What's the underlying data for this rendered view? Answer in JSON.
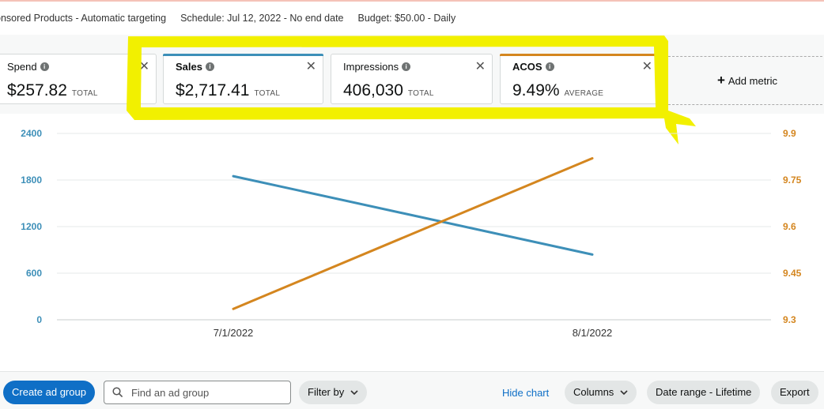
{
  "campaign": {
    "type_text": "onsored Products - Automatic targeting",
    "schedule_text": "Schedule: Jul 12, 2022 - No end date",
    "budget_text": "Budget: $50.00 - Daily"
  },
  "metrics": [
    {
      "label": "Spend",
      "value": "$257.82",
      "agg": "TOTAL"
    },
    {
      "label": "Sales",
      "value": "$2,717.41",
      "agg": "TOTAL",
      "color": "#3d8fb8"
    },
    {
      "label": "Impressions",
      "value": "406,030",
      "agg": "TOTAL"
    },
    {
      "label": "ACOS",
      "value": "9.49%",
      "agg": "AVERAGE",
      "color": "#d4861f"
    }
  ],
  "add_metric_label": "Add metric",
  "highlight_color": "#f2f000",
  "chart_data": {
    "type": "line",
    "x": [
      "7/1/2022",
      "8/1/2022"
    ],
    "y_left": {
      "ticks": [
        "2400",
        "1800",
        "1200",
        "600",
        "0"
      ],
      "range": [
        0,
        2400
      ]
    },
    "y_right": {
      "ticks": [
        "9.9",
        "9.75",
        "9.6",
        "9.45",
        "9.3"
      ],
      "range": [
        9.3,
        9.9
      ]
    },
    "series": [
      {
        "name": "Sales",
        "axis": "left",
        "color": "#3d8fb8",
        "values": [
          1850,
          840
        ]
      },
      {
        "name": "ACOS",
        "axis": "right",
        "color": "#d4861f",
        "values": [
          9.335,
          9.82
        ]
      }
    ]
  },
  "toolbar": {
    "create_label": "Create ad group",
    "search_placeholder": "Find an ad group",
    "filter_label": "Filter by",
    "hide_chart_label": "Hide chart",
    "columns_label": "Columns",
    "date_range_label": "Date range - Lifetime",
    "export_label": "Export"
  }
}
